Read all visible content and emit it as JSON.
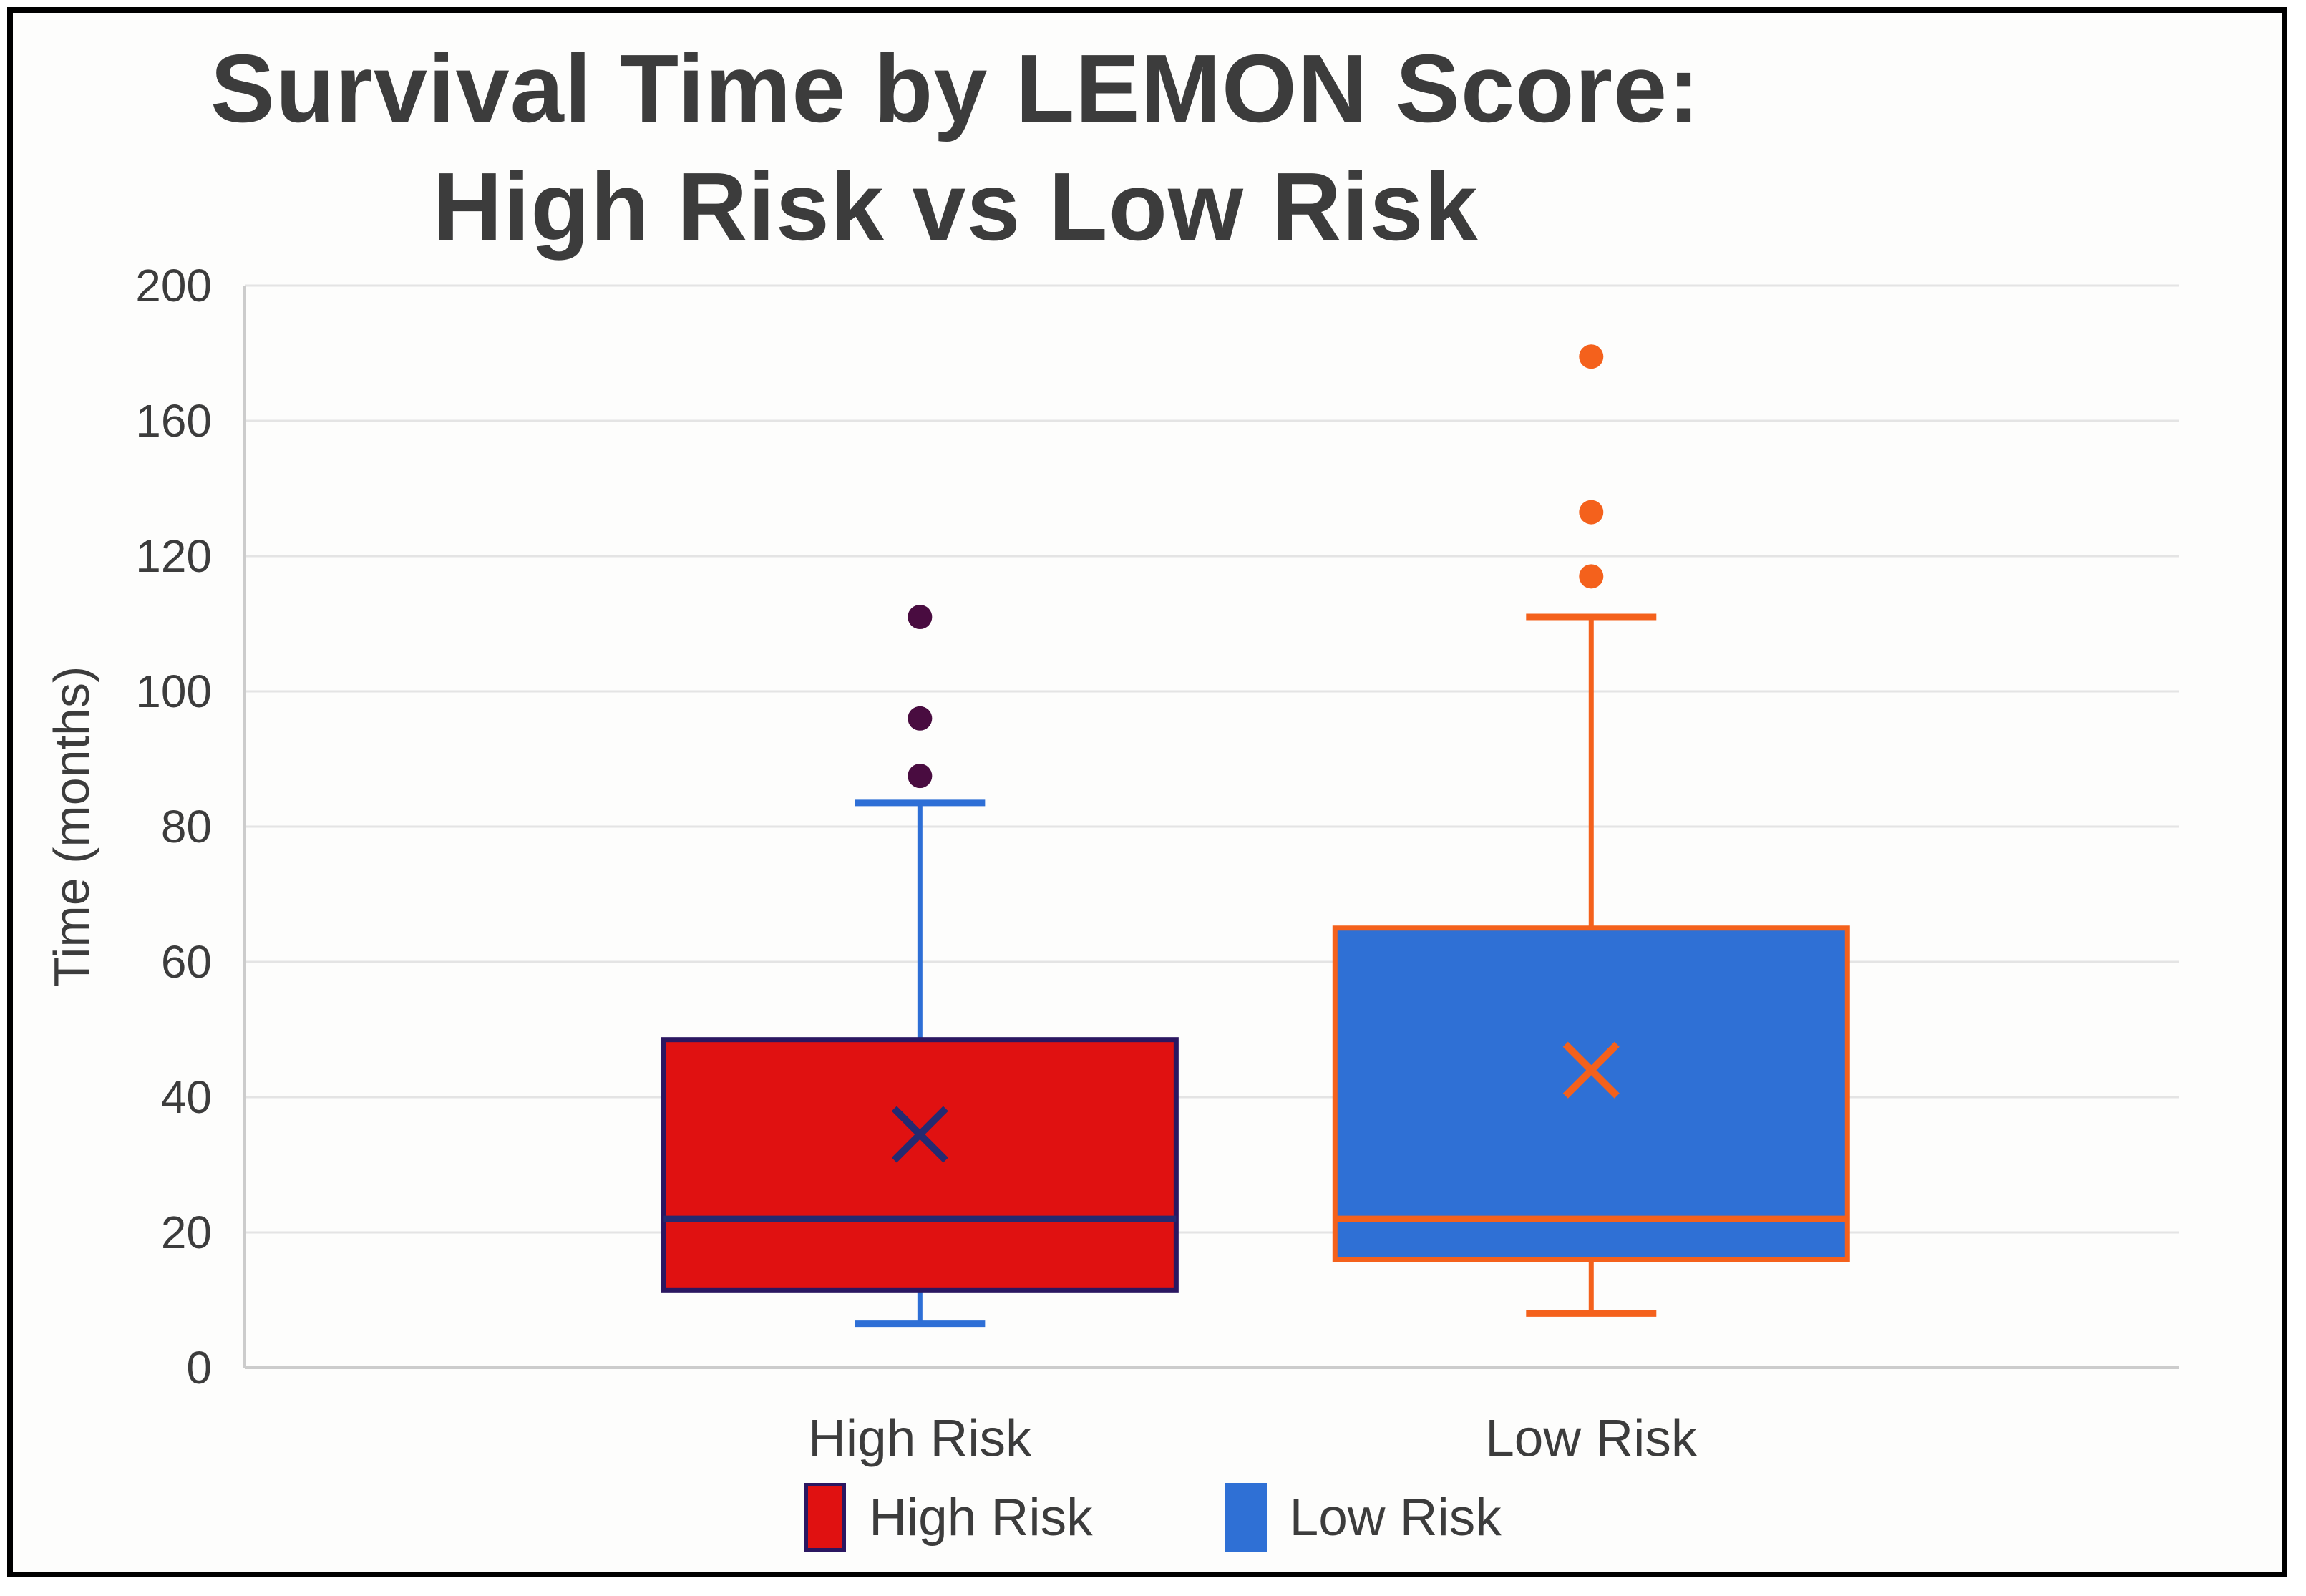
{
  "title": {
    "line1": "Survival Time by LEMON Score:",
    "line2": "High Risk vs Low Risk"
  },
  "y_axis": {
    "label": "Time (months)",
    "tick_labels": [
      "200",
      "160",
      "120",
      "100",
      "80",
      "60",
      "40",
      "20",
      "0"
    ]
  },
  "categories": [
    "High Risk",
    "Low Risk"
  ],
  "legend": [
    {
      "label": "High Risk",
      "color": "#e01111",
      "border": "#2b1761"
    },
    {
      "label": "Low Risk",
      "color": "#2f70d5",
      "border": "#2f70d5"
    }
  ],
  "colors": {
    "text": "#3c3c3c",
    "gridline": "#e4e4e4",
    "axis_line": "#cccccc",
    "high_risk_fill": "#e01111",
    "high_risk_border": "#2b1761",
    "high_risk_median": "#252a70",
    "high_risk_mean": "#252a70",
    "high_risk_whisker": "#2e6fd6",
    "high_risk_outlier": "#490c40",
    "low_risk_fill": "#2f70d5",
    "low_risk_border": "#f4611c",
    "low_risk_median": "#f4611c",
    "low_risk_mean": "#f4611c",
    "low_risk_whisker": "#f4611c",
    "low_risk_outlier": "#f4611c"
  },
  "chart_data": {
    "type": "boxplot",
    "title": "Survival Time by LEMON Score: High Risk vs Low Risk",
    "xlabel": "",
    "ylabel": "Time (months)",
    "categories": [
      "High Risk",
      "Low Risk"
    ],
    "y_ticks": [
      0,
      20,
      40,
      60,
      80,
      100,
      120,
      160,
      200
    ],
    "axis_note": "y ticks are equally spaced on screen (interval 0-120 in steps of 20, then 160 and 200)",
    "grid": true,
    "legend_position": "bottom",
    "series": [
      {
        "name": "High Risk",
        "whisker_low": 6.5,
        "q1": 11.5,
        "median": 22,
        "q3": 48.5,
        "whisker_high": 83.5,
        "mean": 34.5,
        "outliers": [
          87.5,
          96,
          111
        ]
      },
      {
        "name": "Low Risk",
        "whisker_low": 8,
        "q1": 16,
        "median": 22,
        "q3": 65,
        "whisker_high": 111,
        "mean": 44,
        "outliers": [
          117,
          133,
          179
        ]
      }
    ]
  }
}
